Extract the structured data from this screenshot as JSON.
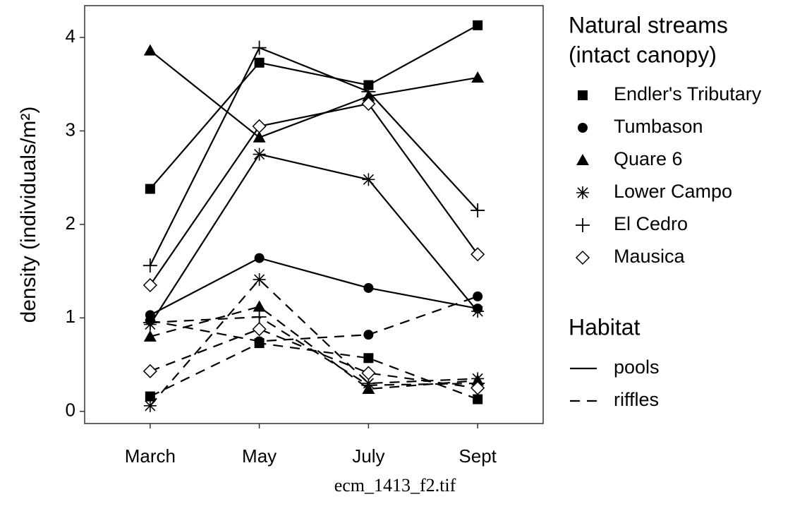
{
  "chart_data": {
    "type": "line",
    "y_label": "density (individuals/m²)",
    "categories": [
      "March",
      "May",
      "July",
      "Sept"
    ],
    "ylim": [
      -0.13,
      4.34
    ],
    "yticks": [
      0,
      1,
      2,
      3,
      4
    ],
    "legend_title": [
      "Natural streams",
      "(intact canopy)"
    ],
    "habitat_title": "Habitat",
    "habitats": [
      {
        "name": "pools",
        "dash": "none"
      },
      {
        "name": "riffles",
        "dash": "14 10"
      }
    ],
    "color": "#000000",
    "series": [
      {
        "name": "Endler's Tributary",
        "marker": "square",
        "values": [
          [
            2.38,
            3.73,
            3.49,
            4.13
          ],
          [
            0.16,
            0.73,
            0.57,
            0.13
          ]
        ]
      },
      {
        "name": "Tumbason",
        "marker": "circle",
        "values": [
          [
            1.03,
            1.64,
            1.32,
            1.1
          ],
          [
            0.97,
            0.75,
            0.82,
            1.23
          ]
        ]
      },
      {
        "name": "Quare 6",
        "marker": "triangle",
        "values": [
          [
            3.86,
            2.93,
            3.37,
            3.57
          ],
          [
            0.8,
            1.12,
            0.24,
            0.33
          ]
        ]
      },
      {
        "name": "Lower Campo",
        "marker": "asterisk",
        "values": [
          [
            0.93,
            2.75,
            2.48,
            1.07
          ],
          [
            0.06,
            1.41,
            0.3,
            0.35
          ]
        ]
      },
      {
        "name": "El Cedro",
        "marker": "plus",
        "values": [
          [
            1.56,
            3.89,
            3.42,
            2.15
          ],
          [
            0.95,
            1.01,
            0.28,
            0.3
          ]
        ]
      },
      {
        "name": "Mausica",
        "marker": "diamond",
        "values": [
          [
            1.35,
            3.05,
            3.29,
            1.68
          ],
          [
            0.43,
            0.88,
            0.41,
            0.25
          ]
        ]
      }
    ]
  },
  "caption": "ecm_1413_f2.tif"
}
